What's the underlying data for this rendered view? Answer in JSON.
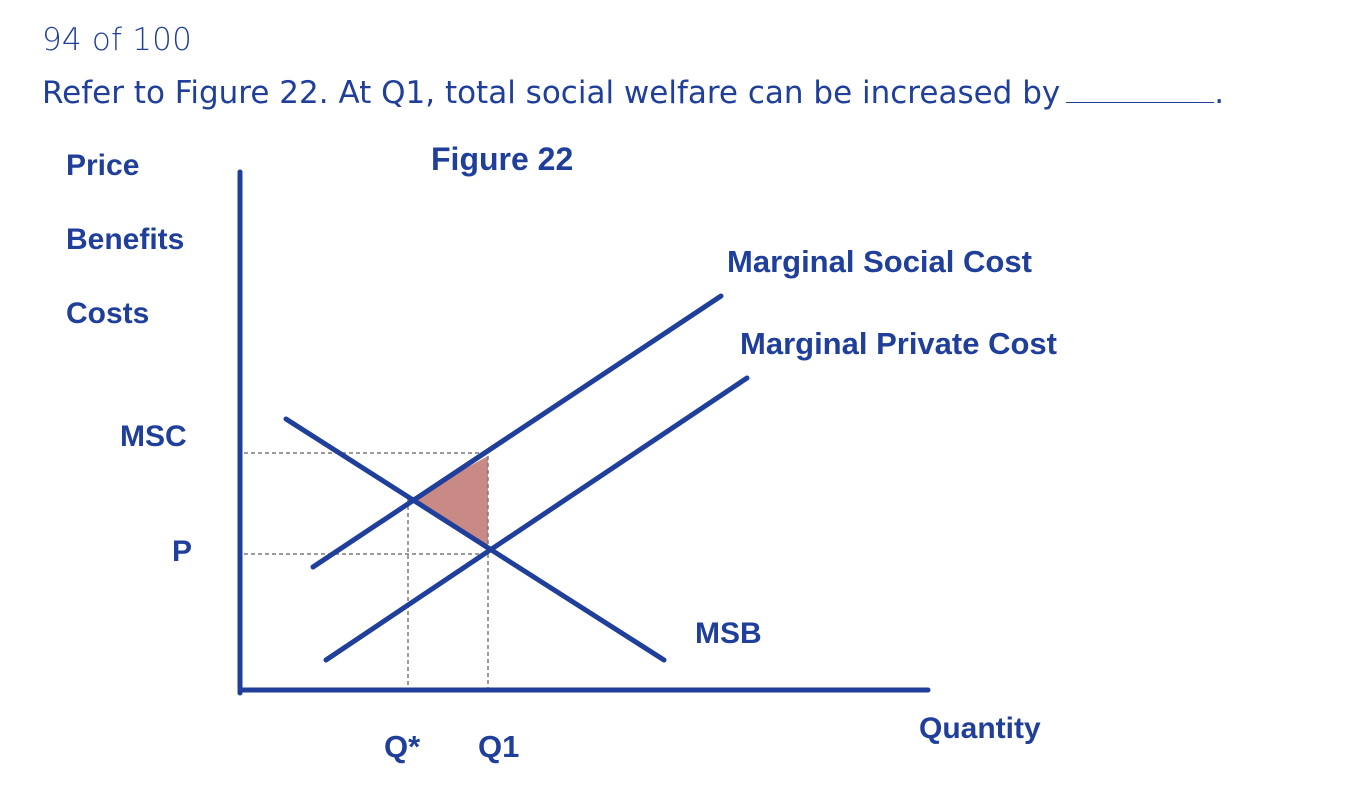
{
  "question": {
    "counter": "94  of 100",
    "text": "Refer to Figure 22. At Q1, total social welfare can be increased by",
    "trailing": "."
  },
  "figure": {
    "title": "Figure 22",
    "y_axis_labels": [
      "Price",
      "Benefits",
      "Costs"
    ],
    "x_axis_label": "Quantity",
    "y_ticks": {
      "msc": "MSC",
      "p": "P"
    },
    "x_ticks": {
      "q_star": "Q*",
      "q1": "Q1"
    },
    "curves": {
      "msc": "Marginal Social Cost",
      "mpc": "Marginal Private Cost",
      "msb": "MSB"
    },
    "colors": {
      "line": "#1f3f9a",
      "deadweight_loss": "#c98a86",
      "guides": "#808080"
    }
  }
}
